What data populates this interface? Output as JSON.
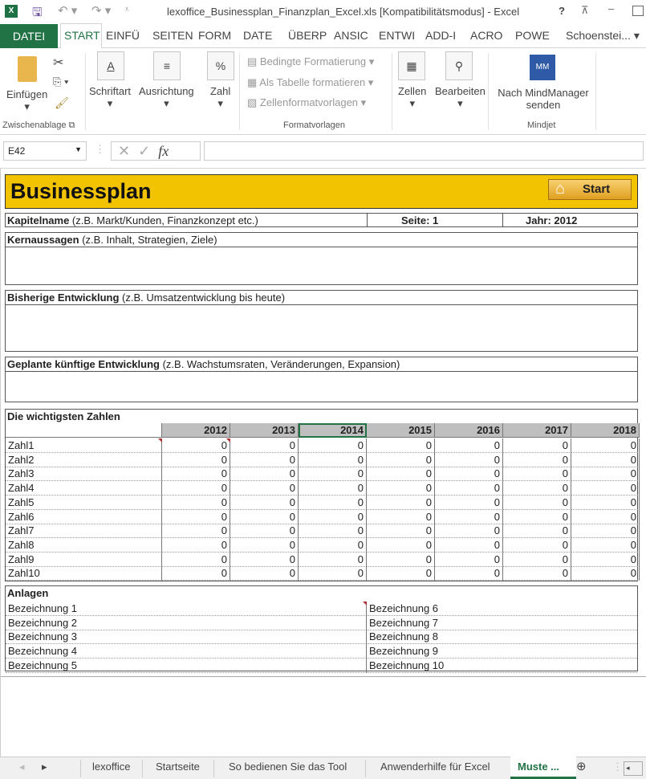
{
  "window": {
    "title": "lexoffice_Businessplan_Finanzplan_Excel.xls  [Kompatibilitätsmodus] - Excel",
    "help": "?"
  },
  "ribbon_tabs": [
    "DATEI",
    "START",
    "EINFÜ",
    "SEITEN",
    "FORM",
    "DATE",
    "ÜBERP",
    "ANSIC",
    "ENTWI",
    "ADD-I",
    "ACRO",
    "POWE"
  ],
  "user": "Schoenstei...",
  "ribbon": {
    "paste": "Einfügen",
    "font": "Schriftart",
    "align": "Ausrichtung",
    "number": "Zahl",
    "cond": "Bedingte Formatierung",
    "table": "Als Tabelle formatieren",
    "styles": "Zellenformatvorlagen",
    "cells": "Zellen",
    "edit": "Bearbeiten",
    "mind1": "Nach MindManager",
    "mind2": "senden",
    "g_clip": "Zwischenablage",
    "g_styles": "Formatvorlagen",
    "g_mind": "Mindjet"
  },
  "formula": {
    "namebox": "E42",
    "fx": "fx",
    "value": ""
  },
  "sheet": {
    "title": "Businessplan",
    "start": "Start",
    "accent": "#f2c300",
    "kap_b": "Kapitelname",
    "kap": " (z.B. Markt/Kunden, Finanzkonzept etc.)",
    "seite": "Seite: 1",
    "jahr": "Jahr: 2012",
    "kern_b": "Kernaussagen",
    "kern": " (z.B. Inhalt, Strategien, Ziele)",
    "bis_b": "Bisherige Entwicklung",
    "bis": " (z.B. Umsatzentwicklung bis heute)",
    "gep_b": "Geplante künftige Entwicklung",
    "gep": " (z.B. Wachstumsraten, Veränderungen, Expansion)",
    "zahlen": "Die wichtigsten Zahlen",
    "years": [
      "2012",
      "2013",
      "2014",
      "2015",
      "2016",
      "2017",
      "2018"
    ],
    "rows": [
      {
        "label": "Zahl1",
        "values": [
          "0",
          "0",
          "0",
          "0",
          "0",
          "0",
          "0"
        ]
      },
      {
        "label": "Zahl2",
        "values": [
          "0",
          "0",
          "0",
          "0",
          "0",
          "0",
          "0"
        ]
      },
      {
        "label": "Zahl3",
        "values": [
          "0",
          "0",
          "0",
          "0",
          "0",
          "0",
          "0"
        ]
      },
      {
        "label": "Zahl4",
        "values": [
          "0",
          "0",
          "0",
          "0",
          "0",
          "0",
          "0"
        ]
      },
      {
        "label": "Zahl5",
        "values": [
          "0",
          "0",
          "0",
          "0",
          "0",
          "0",
          "0"
        ]
      },
      {
        "label": "Zahl6",
        "values": [
          "0",
          "0",
          "0",
          "0",
          "0",
          "0",
          "0"
        ]
      },
      {
        "label": "Zahl7",
        "values": [
          "0",
          "0",
          "0",
          "0",
          "0",
          "0",
          "0"
        ]
      },
      {
        "label": "Zahl8",
        "values": [
          "0",
          "0",
          "0",
          "0",
          "0",
          "0",
          "0"
        ]
      },
      {
        "label": "Zahl9",
        "values": [
          "0",
          "0",
          "0",
          "0",
          "0",
          "0",
          "0"
        ]
      },
      {
        "label": "Zahl10",
        "values": [
          "0",
          "0",
          "0",
          "0",
          "0",
          "0",
          "0"
        ]
      }
    ],
    "anlagen": "Anlagen",
    "left": [
      "Bezeichnung 1",
      "Bezeichnung 2",
      "Bezeichnung 3",
      "Bezeichnung 4",
      "Bezeichnung 5"
    ],
    "right": [
      "Bezeichnung 6",
      "Bezeichnung 7",
      "Bezeichnung 8",
      "Bezeichnung 9",
      "Bezeichnung 10"
    ]
  },
  "sheet_tabs": [
    "lexoffice",
    "Startseite",
    "So bedienen Sie das Tool",
    "Anwenderhilfe für Excel",
    "Muste ..."
  ]
}
